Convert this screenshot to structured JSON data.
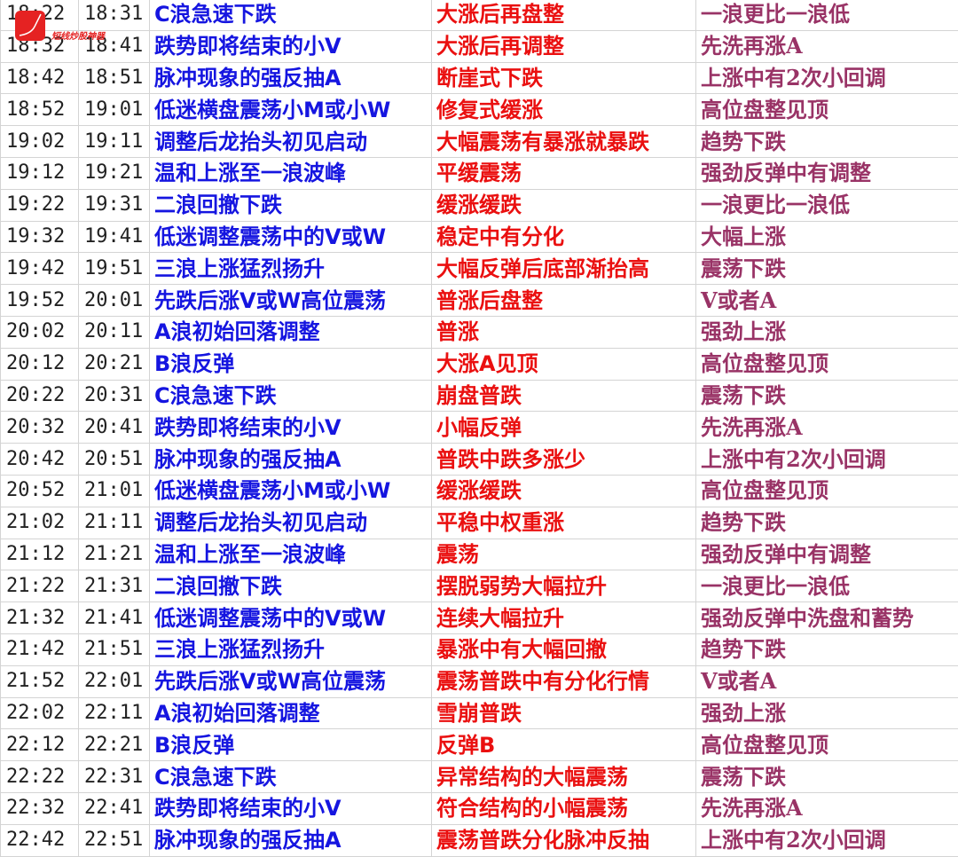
{
  "logo": {
    "text": "短线炒股神器",
    "color": "#e52222"
  },
  "colors": {
    "col3": "#1515e0",
    "col4": "#ea1010",
    "col5": "#993366"
  },
  "rows": [
    [
      "18:22",
      "18:31",
      "C浪急速下跌",
      "大涨后再盘整",
      "一浪更比一浪低"
    ],
    [
      "18:32",
      "18:41",
      "跌势即将结束的小V",
      "大涨后再调整",
      "先洗再涨A"
    ],
    [
      "18:42",
      "18:51",
      "脉冲现象的强反抽A",
      "断崖式下跌",
      "上涨中有2次小回调"
    ],
    [
      "18:52",
      "19:01",
      "低迷横盘震荡小M或小W",
      "修复式缓涨",
      "高位盘整见顶"
    ],
    [
      "19:02",
      "19:11",
      "调整后龙抬头初见启动",
      "大幅震荡有暴涨就暴跌",
      "趋势下跌"
    ],
    [
      "19:12",
      "19:21",
      "温和上涨至一浪波峰",
      "平缓震荡",
      "强劲反弹中有调整"
    ],
    [
      "19:22",
      "19:31",
      "二浪回撤下跌",
      "缓涨缓跌",
      "一浪更比一浪低"
    ],
    [
      "19:32",
      "19:41",
      "低迷调整震荡中的V或W",
      "稳定中有分化",
      "大幅上涨"
    ],
    [
      "19:42",
      "19:51",
      "三浪上涨猛烈扬升",
      "大幅反弹后底部渐抬高",
      "震荡下跌"
    ],
    [
      "19:52",
      "20:01",
      "先跌后涨V或W高位震荡",
      "普涨后盘整",
      "V或者A"
    ],
    [
      "20:02",
      "20:11",
      "A浪初始回落调整",
      "普涨",
      "强劲上涨"
    ],
    [
      "20:12",
      "20:21",
      "B浪反弹",
      "大涨A见顶",
      "高位盘整见顶"
    ],
    [
      "20:22",
      "20:31",
      "C浪急速下跌",
      "崩盘普跌",
      "震荡下跌"
    ],
    [
      "20:32",
      "20:41",
      "跌势即将结束的小V",
      "小幅反弹",
      "先洗再涨A"
    ],
    [
      "20:42",
      "20:51",
      "脉冲现象的强反抽A",
      "普跌中跌多涨少",
      "上涨中有2次小回调"
    ],
    [
      "20:52",
      "21:01",
      "低迷横盘震荡小M或小W",
      "缓涨缓跌",
      "高位盘整见顶"
    ],
    [
      "21:02",
      "21:11",
      "调整后龙抬头初见启动",
      "平稳中权重涨",
      "趋势下跌"
    ],
    [
      "21:12",
      "21:21",
      "温和上涨至一浪波峰",
      "震荡",
      "强劲反弹中有调整"
    ],
    [
      "21:22",
      "21:31",
      "二浪回撤下跌",
      "摆脱弱势大幅拉升",
      "一浪更比一浪低"
    ],
    [
      "21:32",
      "21:41",
      "低迷调整震荡中的V或W",
      "连续大幅拉升",
      "强劲反弹中洗盘和蓄势"
    ],
    [
      "21:42",
      "21:51",
      "三浪上涨猛烈扬升",
      "暴涨中有大幅回撤",
      "趋势下跌"
    ],
    [
      "21:52",
      "22:01",
      "先跌后涨V或W高位震荡",
      "震荡普跌中有分化行情",
      "V或者A"
    ],
    [
      "22:02",
      "22:11",
      "A浪初始回落调整",
      "雪崩普跌",
      "强劲上涨"
    ],
    [
      "22:12",
      "22:21",
      "B浪反弹",
      "反弹B",
      "高位盘整见顶"
    ],
    [
      "22:22",
      "22:31",
      "C浪急速下跌",
      "异常结构的大幅震荡",
      "震荡下跌"
    ],
    [
      "22:32",
      "22:41",
      "跌势即将结束的小V",
      "符合结构的小幅震荡",
      "先洗再涨A"
    ],
    [
      "22:42",
      "22:51",
      "脉冲现象的强反抽A",
      "震荡普跌分化脉冲反抽",
      "上涨中有2次小回调"
    ]
  ]
}
